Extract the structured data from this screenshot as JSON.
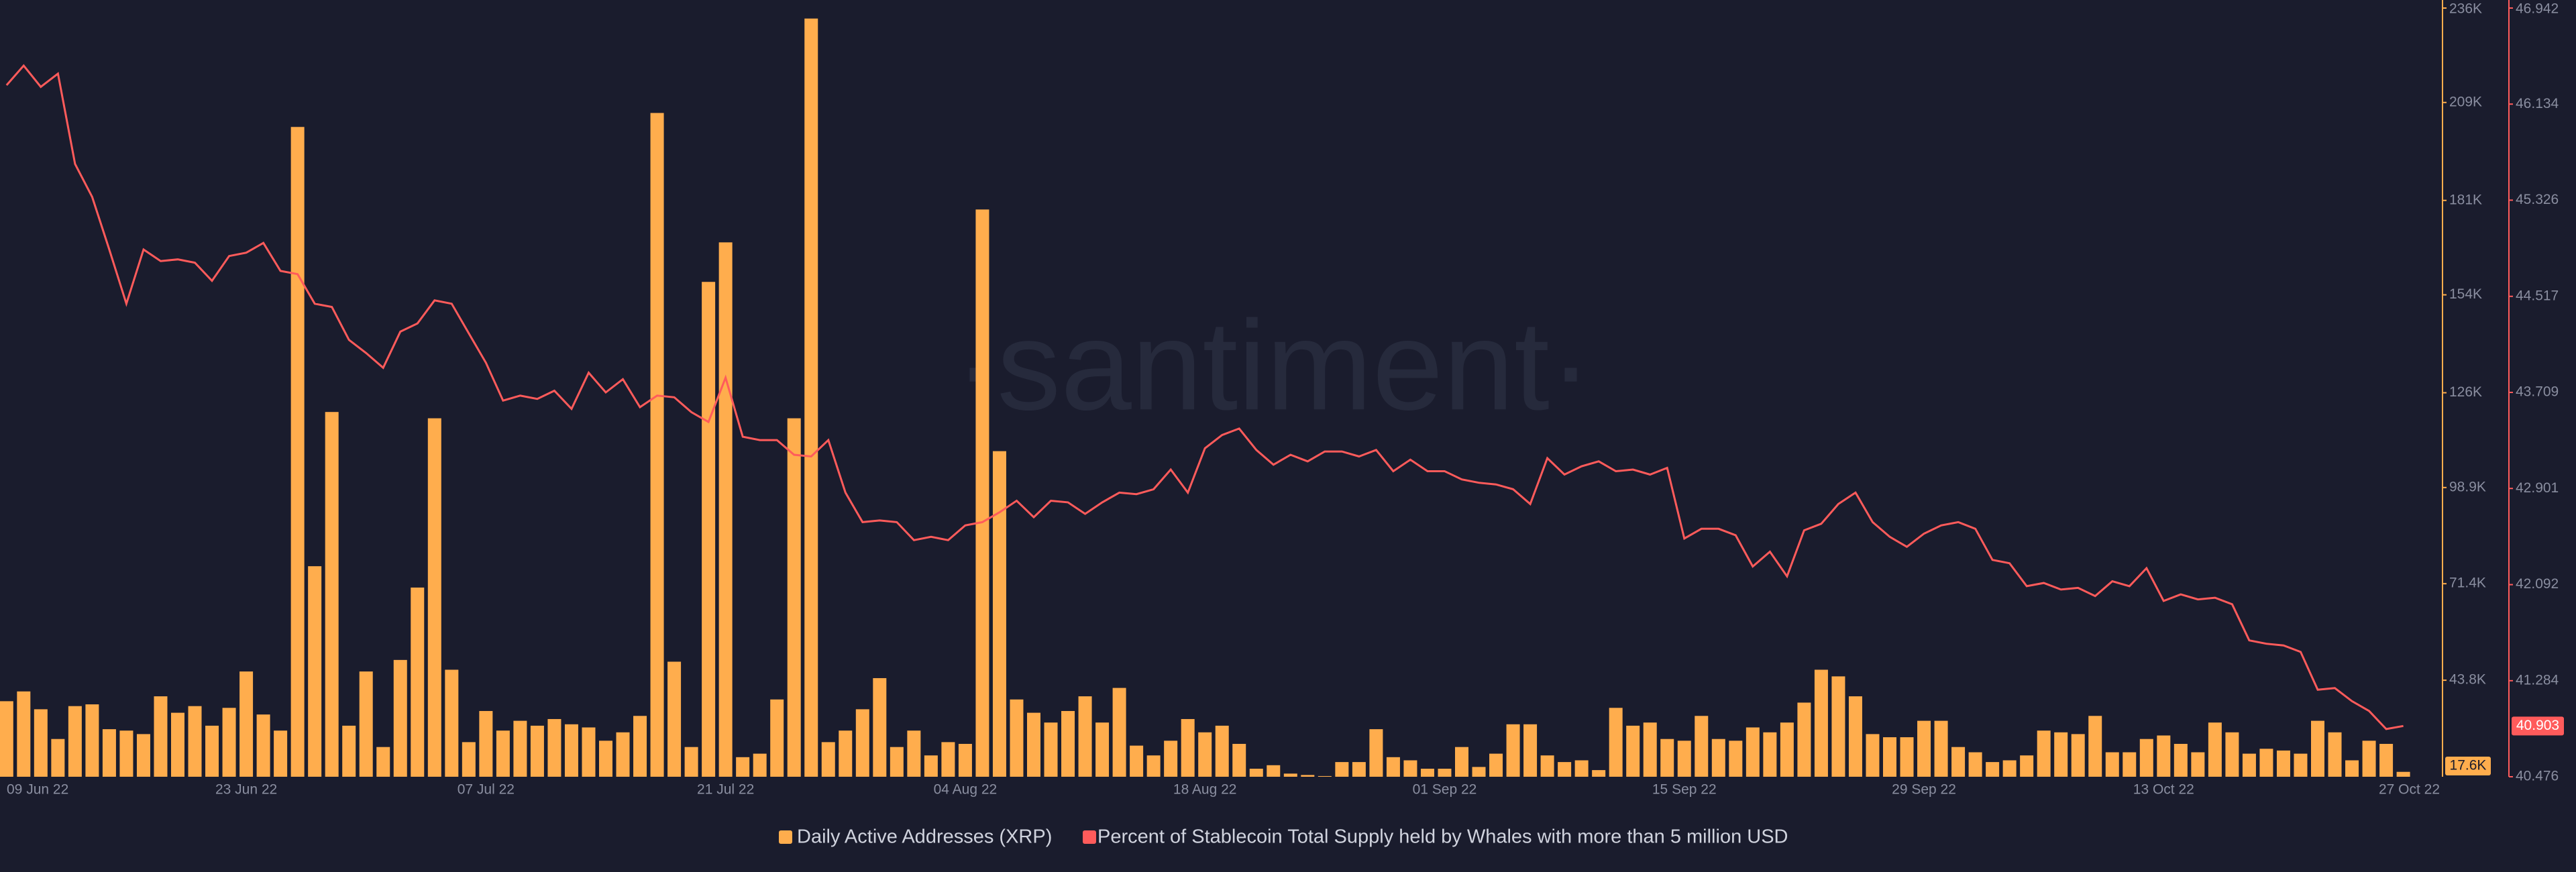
{
  "chart_data": {
    "type": "bar-line",
    "watermark": "·santiment·",
    "categories": [
      "09 Jun 22",
      null,
      null,
      null,
      null,
      null,
      null,
      null,
      null,
      null,
      null,
      null,
      null,
      null,
      "23 Jun 22",
      null,
      null,
      null,
      null,
      null,
      null,
      null,
      null,
      null,
      null,
      null,
      null,
      null,
      "07 Jul 22",
      null,
      null,
      null,
      null,
      null,
      null,
      null,
      null,
      null,
      null,
      null,
      null,
      null,
      "21 Jul 22",
      null,
      null,
      null,
      null,
      null,
      null,
      null,
      null,
      null,
      null,
      null,
      null,
      null,
      "04 Aug 22",
      null,
      null,
      null,
      null,
      null,
      null,
      null,
      null,
      null,
      null,
      null,
      null,
      null,
      "18 Aug 22",
      null,
      null,
      null,
      null,
      null,
      null,
      null,
      null,
      null,
      null,
      null,
      null,
      null,
      "01 Sep 22",
      null,
      null,
      null,
      null,
      null,
      null,
      null,
      null,
      null,
      null,
      null,
      null,
      null,
      "15 Sep 22",
      null,
      null,
      null,
      null,
      null,
      null,
      null,
      null,
      null,
      null,
      null,
      null,
      null,
      "29 Sep 22",
      null,
      null,
      null,
      null,
      null,
      null,
      null,
      null,
      null,
      null,
      null,
      null,
      null,
      "13 Oct 22",
      null,
      null,
      null,
      null,
      null,
      null,
      null,
      null,
      null,
      null,
      null,
      null,
      null,
      "27 Oct 22"
    ],
    "ylim": [
      16200,
      236000
    ],
    "yticks": [
      {
        "value": 43800,
        "label": "43.8K"
      },
      {
        "value": 71400,
        "label": "71.4K"
      },
      {
        "value": 98900,
        "label": "98.9K"
      },
      {
        "value": 126000,
        "label": "126K"
      },
      {
        "value": 154000,
        "label": "154K"
      },
      {
        "value": 181000,
        "label": "181K"
      },
      {
        "value": 209000,
        "label": "209K"
      },
      {
        "value": 236000,
        "label": "236K"
      }
    ],
    "y2lim": [
      40.476,
      46.942
    ],
    "y2ticks": [
      40.476,
      41.284,
      42.092,
      42.901,
      43.709,
      44.517,
      45.326,
      46.134,
      46.942
    ],
    "series": [
      {
        "name": "Daily Active Addresses (XRP)",
        "color": "#ffad4d",
        "last_value_label": "17.6K",
        "values": [
          37800,
          40600,
          35500,
          27000,
          36400,
          36900,
          29800,
          29400,
          28400,
          39200,
          34500,
          36400,
          30800,
          35900,
          46300,
          34000,
          29400,
          202000,
          76400,
          120500,
          30800,
          46300,
          24700,
          49600,
          70300,
          118700,
          46800,
          26100,
          35000,
          29400,
          32200,
          30800,
          32700,
          31200,
          30300,
          26500,
          28900,
          33600,
          206000,
          49100,
          24700,
          157700,
          169000,
          21800,
          22800,
          38300,
          118700,
          233000,
          26100,
          29400,
          35500,
          44400,
          24700,
          29400,
          22300,
          26100,
          25600,
          178400,
          109300,
          38300,
          34500,
          31700,
          35000,
          39200,
          31700,
          41600,
          25100,
          22300,
          26500,
          32700,
          28900,
          30800,
          25600,
          18500,
          19500,
          17100,
          16700,
          16400,
          20400,
          20400,
          29800,
          21800,
          20900,
          18500,
          18500,
          24700,
          19000,
          22800,
          31200,
          31200,
          22300,
          20400,
          20900,
          18100,
          35900,
          30800,
          31700,
          27000,
          26500,
          33600,
          27000,
          26500,
          30300,
          28900,
          31700,
          37400,
          46800,
          44900,
          39200,
          28400,
          27500,
          27500,
          32200,
          32200,
          24700,
          23200,
          20400,
          20900,
          22300,
          29400,
          28900,
          28400,
          33600,
          23200,
          23200,
          27000,
          28000,
          25600,
          23200,
          31700,
          28900,
          22800,
          24200,
          23700,
          22800,
          32200,
          28900,
          20900,
          26500,
          25600,
          17600
        ]
      },
      {
        "name": "Percent of Stablecoin Total Supply held by Whales with more than 5 million USD",
        "color": "#ff5b5b",
        "axis": "y2",
        "last_value_label": "40.903",
        "values": [
          46.293,
          46.458,
          46.279,
          46.39,
          45.63,
          45.353,
          44.911,
          44.455,
          44.911,
          44.814,
          44.828,
          44.8,
          44.648,
          44.856,
          44.884,
          44.966,
          44.731,
          44.704,
          44.455,
          44.428,
          44.151,
          44.04,
          43.916,
          44.22,
          44.289,
          44.483,
          44.455,
          44.206,
          43.958,
          43.64,
          43.682,
          43.654,
          43.723,
          43.571,
          43.875,
          43.709,
          43.82,
          43.585,
          43.682,
          43.668,
          43.543,
          43.46,
          43.833,
          43.336,
          43.308,
          43.308,
          43.184,
          43.17,
          43.308,
          42.866,
          42.618,
          42.632,
          42.618,
          42.466,
          42.494,
          42.466,
          42.59,
          42.618,
          42.701,
          42.798,
          42.659,
          42.798,
          42.784,
          42.687,
          42.784,
          42.866,
          42.853,
          42.894,
          43.06,
          42.866,
          43.239,
          43.35,
          43.405,
          43.225,
          43.101,
          43.184,
          43.129,
          43.212,
          43.212,
          43.17,
          43.225,
          43.046,
          43.143,
          43.046,
          43.046,
          42.977,
          42.949,
          42.935,
          42.894,
          42.77,
          43.156,
          43.018,
          43.087,
          43.129,
          43.046,
          43.06,
          43.018,
          43.074,
          42.48,
          42.562,
          42.562,
          42.507,
          42.245,
          42.369,
          42.162,
          42.549,
          42.604,
          42.77,
          42.866,
          42.618,
          42.494,
          42.41,
          42.521,
          42.59,
          42.618,
          42.562,
          42.3,
          42.272,
          42.079,
          42.106,
          42.051,
          42.065,
          41.996,
          42.12,
          42.079,
          42.231,
          41.955,
          42.01,
          41.968,
          41.982,
          41.927,
          41.623,
          41.595,
          41.581,
          41.526,
          41.208,
          41.222,
          41.112,
          41.029,
          40.877,
          40.903
        ]
      }
    ]
  }
}
